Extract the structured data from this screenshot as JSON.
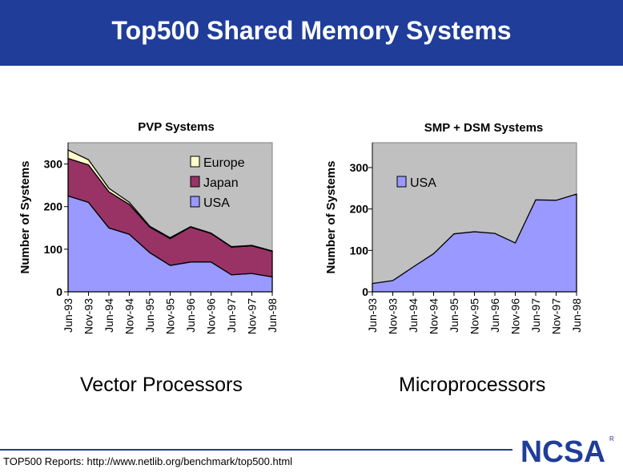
{
  "page": {
    "title": "Top500 Shared Memory Systems",
    "footer": "TOP500 Reports:  http://www.netlib.org/benchmark/top500.html",
    "logo_text": "NCSA",
    "logo_mark": "R"
  },
  "colors": {
    "header": "#1f3d99",
    "plot_bg": "#c0c0c0",
    "usa": "#9999ff",
    "japan": "#993366",
    "europe": "#ffffcc"
  },
  "chart_data": [
    {
      "type": "area",
      "title": "PVP Systems",
      "caption": "Vector Processors",
      "ylabel": "Number of Systems",
      "xlabel": "",
      "ylim": [
        0,
        350
      ],
      "yticks": [
        0,
        100,
        200,
        300
      ],
      "categories": [
        "Jun-93",
        "Nov-93",
        "Jun-94",
        "Nov-94",
        "Jun-95",
        "Nov-95",
        "Jun-96",
        "Nov-96",
        "Jun-97",
        "Nov-97",
        "Jun-98"
      ],
      "stacked": true,
      "legend_position": "top-right",
      "series": [
        {
          "name": "USA",
          "values": [
            225,
            210,
            150,
            135,
            92,
            62,
            70,
            70,
            40,
            43,
            35
          ]
        },
        {
          "name": "Japan",
          "values": [
            88,
            88,
            85,
            70,
            60,
            63,
            82,
            67,
            65,
            65,
            60
          ]
        },
        {
          "name": "Europe",
          "values": [
            20,
            12,
            8,
            5,
            2,
            2,
            1,
            1,
            1,
            1,
            1
          ]
        }
      ]
    },
    {
      "type": "area",
      "title": "SMP + DSM Systems",
      "caption": "Microprocessors",
      "ylabel": "Number of Systems",
      "xlabel": "",
      "ylim": [
        0,
        360
      ],
      "yticks": [
        0,
        100,
        200,
        300
      ],
      "categories": [
        "Jun-93",
        "Nov-93",
        "Jun-94",
        "Nov-94",
        "Jun-95",
        "Nov-95",
        "Jun-96",
        "Nov-96",
        "Jun-97",
        "Nov-97",
        "Jun-98"
      ],
      "stacked": true,
      "legend_position": "top-right",
      "series": [
        {
          "name": "USA",
          "values": [
            20,
            27,
            60,
            92,
            140,
            145,
            141,
            118,
            222,
            221,
            236
          ]
        }
      ]
    }
  ]
}
